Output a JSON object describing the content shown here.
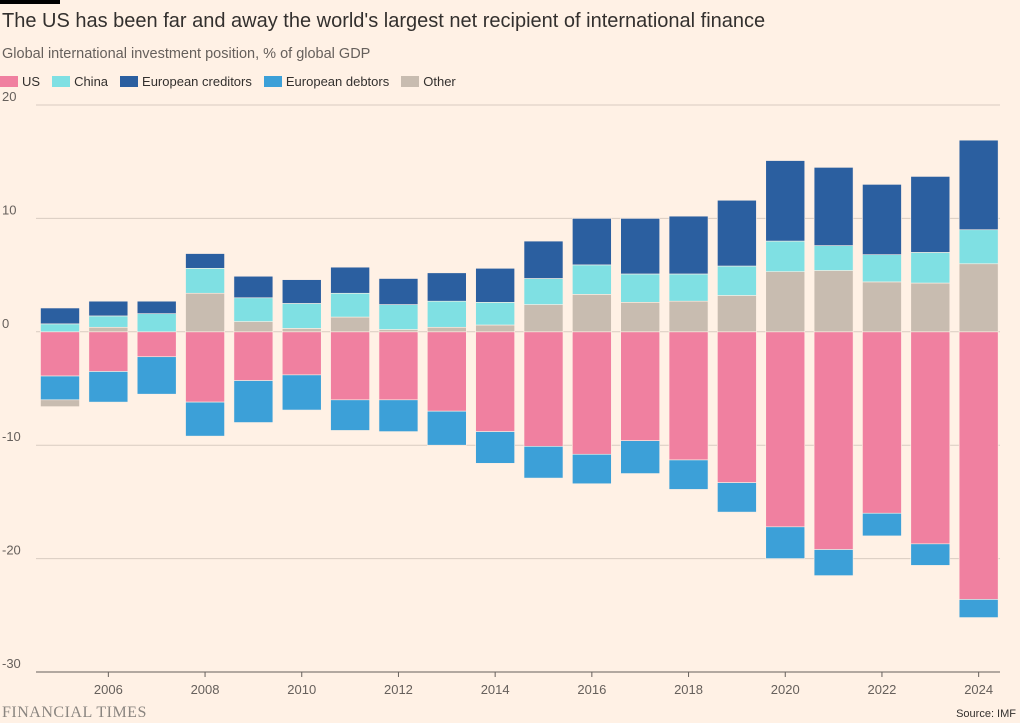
{
  "title": "The US has been far and away the world's largest net recipient of international finance",
  "subtitle": "Global international investment position, % of global GDP",
  "legend": [
    {
      "name": "US",
      "color": "#F080A0"
    },
    {
      "name": "China",
      "color": "#7FE0E3"
    },
    {
      "name": "European creditors",
      "color": "#2B5FA0"
    },
    {
      "name": "European debtors",
      "color": "#3CA0D8"
    },
    {
      "name": "Other",
      "color": "#C8BCB0"
    }
  ],
  "footer": {
    "logo": "FINANCIAL TIMES",
    "source": "Source: IMF"
  },
  "chart_data": {
    "type": "bar",
    "stacked": true,
    "title": "The US has been far and away the world's largest net recipient of international finance",
    "subtitle": "Global international investment position, % of global GDP",
    "ylim": [
      -30,
      20
    ],
    "yticks": [
      20,
      10,
      0,
      -10,
      -20,
      -30
    ],
    "grid": true,
    "legend_position": "top-left",
    "categories": [
      "2005",
      "2006",
      "2007",
      "2008",
      "2009",
      "2010",
      "2011",
      "2012",
      "2013",
      "2014",
      "2015",
      "2016",
      "2017",
      "2018",
      "2019",
      "2020",
      "2021",
      "2022",
      "2023",
      "2024"
    ],
    "xticks": [
      "2006",
      "2008",
      "2010",
      "2012",
      "2014",
      "2016",
      "2018",
      "2020",
      "2022",
      "2024"
    ],
    "series": [
      {
        "name": "US",
        "color": "#F080A0",
        "values": [
          -3.9,
          -3.5,
          -2.2,
          -6.2,
          -4.3,
          -3.8,
          -6.0,
          -6.0,
          -7.0,
          -8.8,
          -10.1,
          -10.8,
          -9.6,
          -11.3,
          -13.3,
          -17.2,
          -19.2,
          -16.0,
          -18.7,
          -23.6
        ]
      },
      {
        "name": "European debtors",
        "color": "#3CA0D8",
        "values": [
          -2.1,
          -2.7,
          -3.3,
          -3.0,
          -3.7,
          -3.1,
          -2.7,
          -2.8,
          -3.0,
          -2.8,
          -2.8,
          -2.6,
          -2.9,
          -2.6,
          -2.6,
          -2.8,
          -2.3,
          -2.0,
          -1.9,
          -1.6
        ]
      },
      {
        "name": "Other",
        "color": "#C8BCB0",
        "values": [
          -0.6,
          0.4,
          0,
          3.4,
          0.9,
          0.3,
          1.3,
          0.2,
          0.4,
          0.6,
          2.4,
          3.3,
          2.6,
          2.7,
          3.2,
          5.3,
          5.4,
          4.4,
          4.3,
          6.0
        ]
      },
      {
        "name": "China",
        "color": "#7FE0E3",
        "values": [
          0.7,
          1.0,
          1.6,
          2.2,
          2.1,
          2.2,
          2.1,
          2.2,
          2.3,
          2.0,
          2.3,
          2.6,
          2.5,
          2.4,
          2.6,
          2.7,
          2.2,
          2.4,
          2.7,
          3.0
        ]
      },
      {
        "name": "European creditors",
        "color": "#2B5FA0",
        "values": [
          1.4,
          1.3,
          1.1,
          1.3,
          1.9,
          2.1,
          2.3,
          2.3,
          2.5,
          3.0,
          3.3,
          4.1,
          4.9,
          5.1,
          5.8,
          7.1,
          6.9,
          6.2,
          6.7,
          7.9
        ]
      }
    ]
  }
}
